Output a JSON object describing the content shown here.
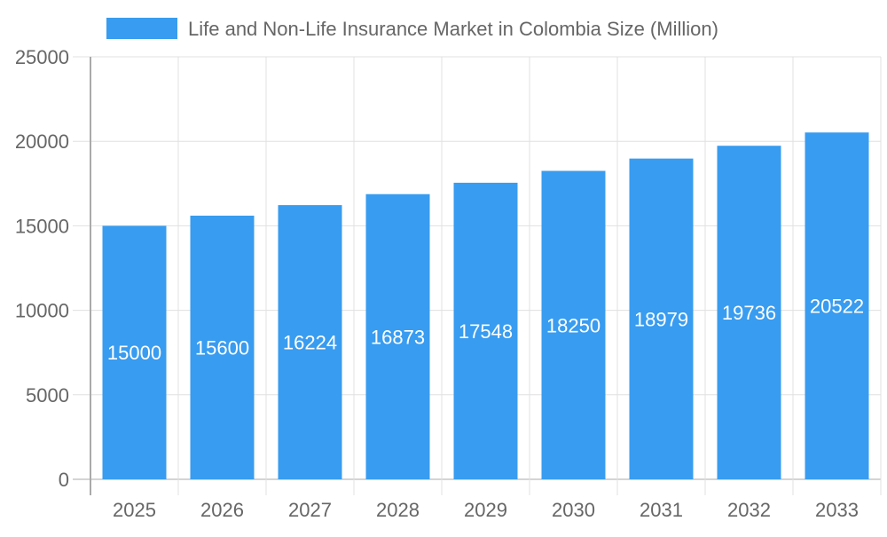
{
  "chart_data": {
    "type": "bar",
    "title": "",
    "xlabel": "",
    "ylabel": "",
    "categories": [
      "2025",
      "2026",
      "2027",
      "2028",
      "2029",
      "2030",
      "2031",
      "2032",
      "2033"
    ],
    "series": [
      {
        "name": "Life and Non-Life Insurance Market in Colombia Size (Million)",
        "values": [
          15000,
          15600,
          16224,
          16873,
          17548,
          18250,
          18979,
          19736,
          20522
        ]
      }
    ],
    "ylim": [
      0,
      25000
    ],
    "yticks": [
      0,
      5000,
      10000,
      15000,
      20000,
      25000
    ],
    "grid": true,
    "legend": "top",
    "data_labels": true,
    "colors": {
      "bar": "#389cf0",
      "grid": "#e0e0e0",
      "axis": "#aaaaaa",
      "text": "#666666",
      "label": "#ffffff"
    }
  }
}
